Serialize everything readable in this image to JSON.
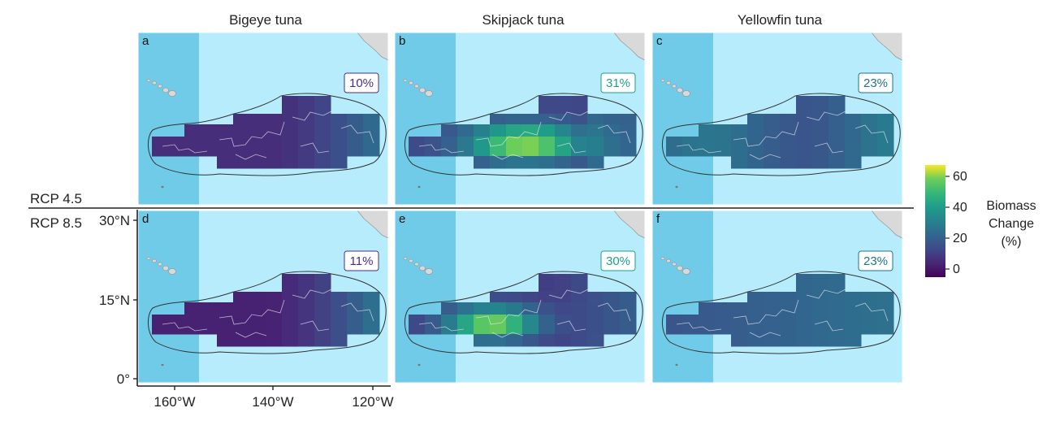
{
  "figure": {
    "columns": [
      "Bigeye tuna",
      "Skipjack tuna",
      "Yellowfin tuna"
    ],
    "rows": [
      "RCP 4.5",
      "RCP 8.5"
    ],
    "panels": [
      {
        "letter": "a",
        "species": "Bigeye tuna",
        "scenario": "RCP 4.5",
        "pct": "10%",
        "pct_color": "#4a2c8a",
        "profile": "bigeye45"
      },
      {
        "letter": "b",
        "species": "Skipjack tuna",
        "scenario": "RCP 4.5",
        "pct": "31%",
        "pct_color": "#1f9e89",
        "profile": "skip45"
      },
      {
        "letter": "c",
        "species": "Yellowfin tuna",
        "scenario": "RCP 4.5",
        "pct": "23%",
        "pct_color": "#23728e",
        "profile": "yf45"
      },
      {
        "letter": "d",
        "species": "Bigeye tuna",
        "scenario": "RCP 8.5",
        "pct": "11%",
        "pct_color": "#4a2c8a",
        "profile": "bigeye85"
      },
      {
        "letter": "e",
        "species": "Skipjack tuna",
        "scenario": "RCP 8.5",
        "pct": "30%",
        "pct_color": "#1f9e89",
        "profile": "skip85"
      },
      {
        "letter": "f",
        "species": "Yellowfin tuna",
        "scenario": "RCP 8.5",
        "pct": "23%",
        "pct_color": "#23728e",
        "profile": "yf85"
      }
    ],
    "y_axis": {
      "ticks": [
        "30°N",
        "15°N",
        "0°"
      ]
    },
    "x_axis": {
      "ticks": [
        "160°W",
        "140°W",
        "120°W"
      ]
    },
    "colorbar": {
      "title": [
        "Biomass",
        "Change",
        "(%)"
      ],
      "ticks": [
        "60",
        "40",
        "20",
        "0"
      ],
      "range": [
        -5,
        67
      ],
      "colormap": "viridis"
    },
    "colors": {
      "ocean": "#b6ecfb",
      "ocean_dark": "#6fcbe8",
      "land": "#d9d9d9",
      "outline": "#333333"
    }
  }
}
